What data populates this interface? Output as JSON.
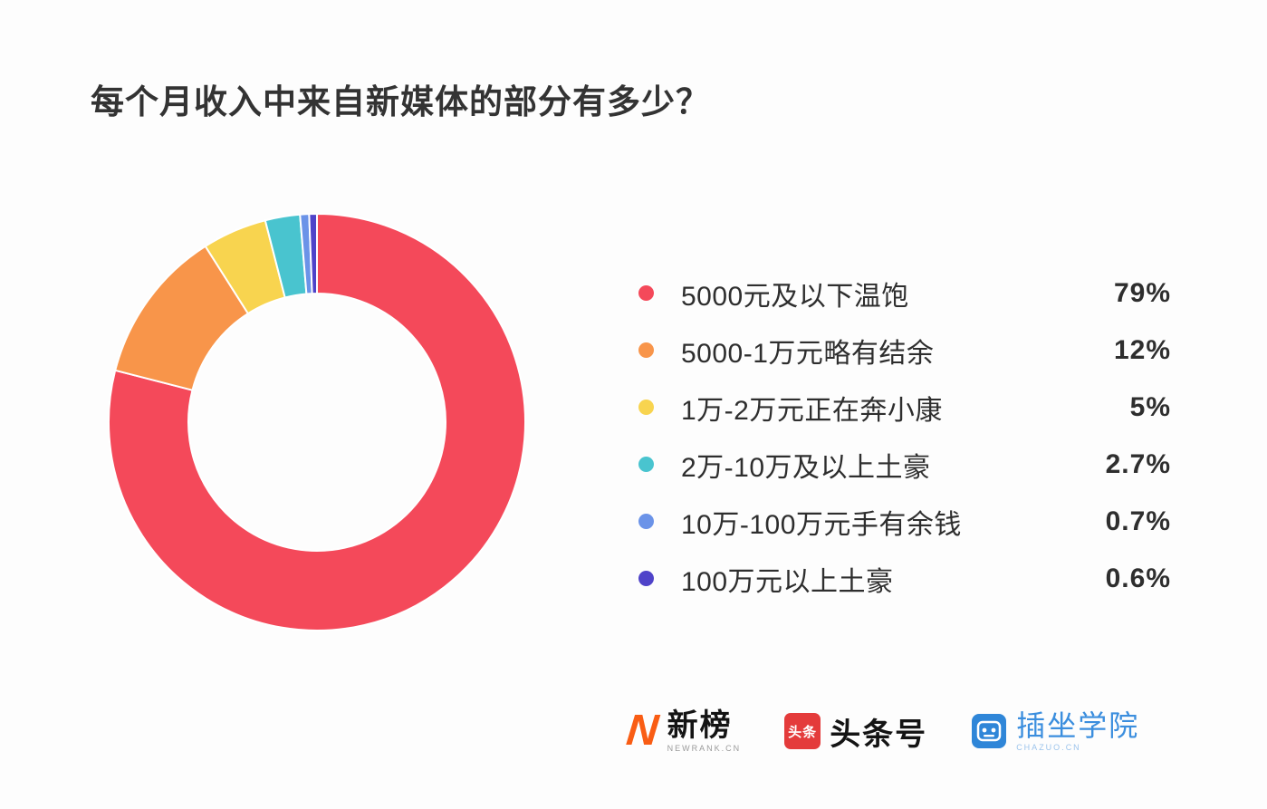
{
  "page": {
    "title": "每个月收入中来自新媒体的部分有多少？",
    "background": "#fdfdfd"
  },
  "chart_data": {
    "type": "pie",
    "donut": true,
    "start_angle_deg": 0,
    "direction": "clockwise",
    "title": "每个月收入中来自新媒体的部分有多少？",
    "legend_position": "right",
    "series": [
      {
        "label": "5000元及以下温饱",
        "value": 79,
        "display": "79%",
        "color": "#f4495a"
      },
      {
        "label": "5000-1万元略有结余",
        "value": 12,
        "display": "12%",
        "color": "#f8954a"
      },
      {
        "label": "1万-2万元正在奔小康",
        "value": 5,
        "display": "5%",
        "color": "#f8d44f"
      },
      {
        "label": "2万-10万及以上土豪",
        "value": 2.7,
        "display": "2.7%",
        "color": "#49c4cf"
      },
      {
        "label": "10万-100万元手有余钱",
        "value": 0.7,
        "display": "0.7%",
        "color": "#6b93e8"
      },
      {
        "label": "100万元以上土豪",
        "value": 0.6,
        "display": "0.6%",
        "color": "#4f43c9"
      }
    ]
  },
  "footer": {
    "logos": [
      {
        "name": "newrank",
        "icon": "newrank-n-icon",
        "text": "新榜",
        "subtext": "NEWRANK.CN"
      },
      {
        "name": "toutiao",
        "icon": "toutiao-square-icon",
        "icon_text": "头条",
        "text": "头条号"
      },
      {
        "name": "chazuo",
        "icon": "chazuo-face-icon",
        "text": "插坐学院",
        "subtext": "CHAZUO.CN"
      }
    ]
  }
}
